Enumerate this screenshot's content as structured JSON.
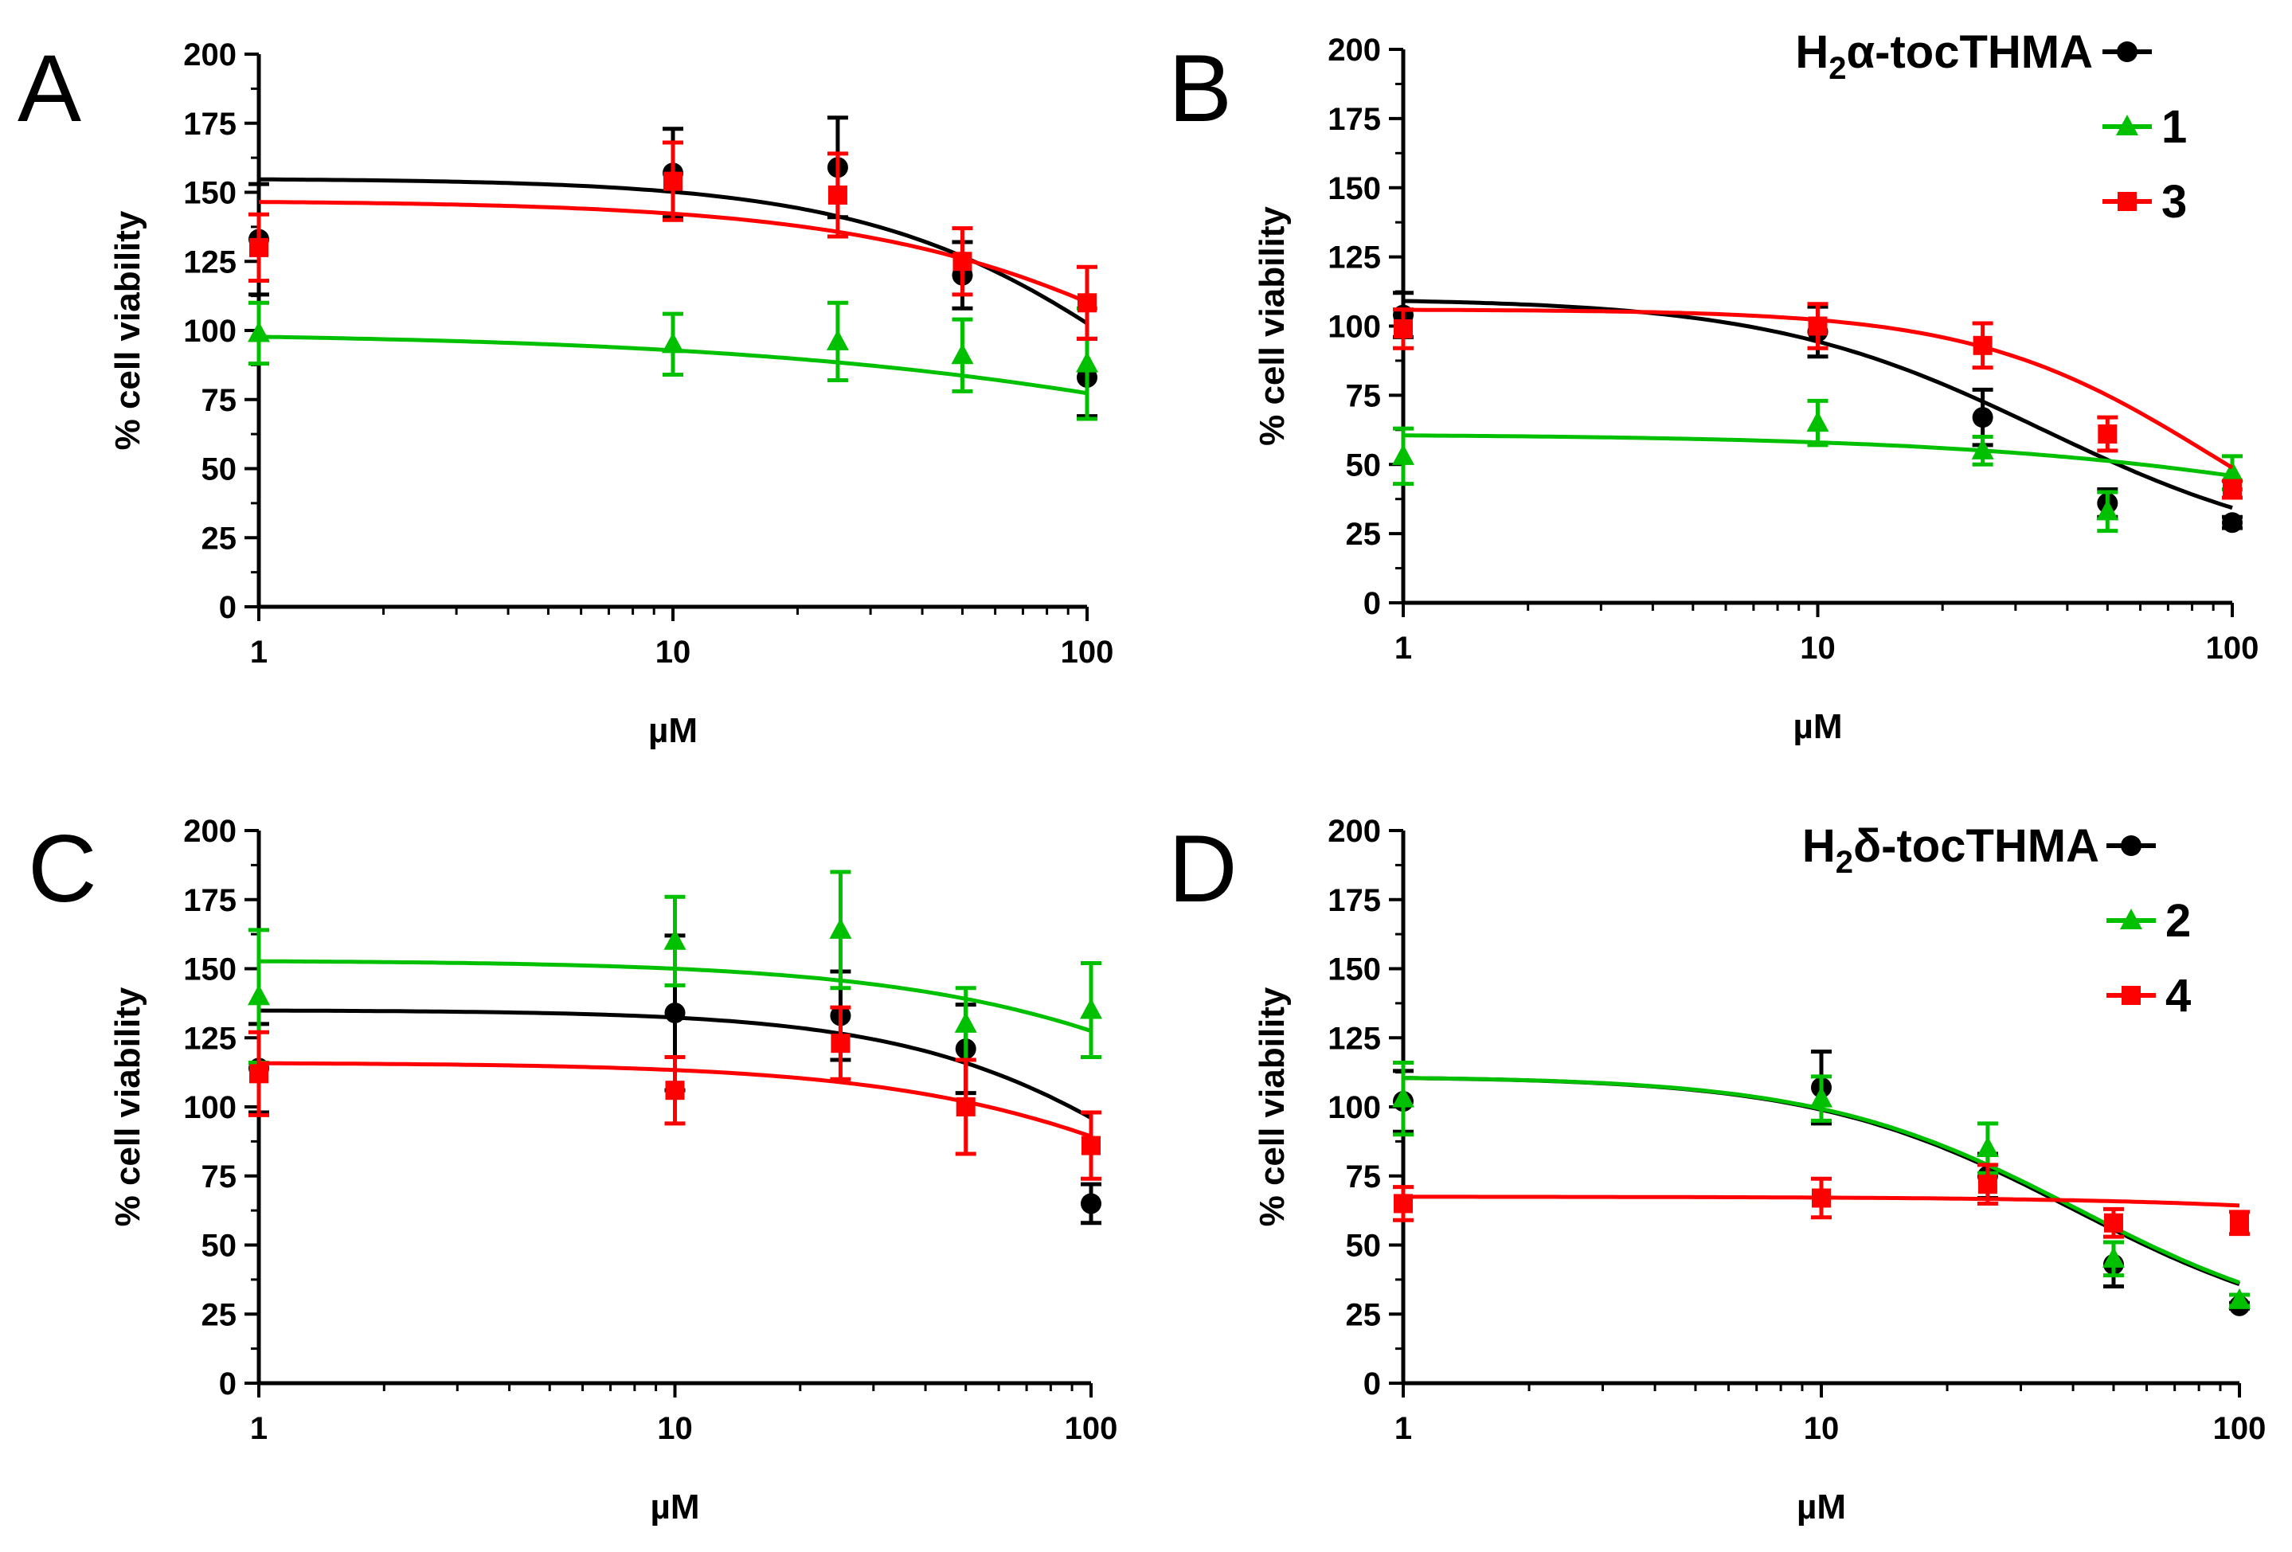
{
  "chart_data": [
    {
      "panel": "A",
      "type": "scatter",
      "xlabel": "µM",
      "ylabel": "% cell viability",
      "xscale": "log",
      "xlim": [
        1,
        100
      ],
      "ylim": [
        0,
        200
      ],
      "xticks": [
        "1",
        "10",
        "100"
      ],
      "yticks": [
        "0",
        "25",
        "50",
        "75",
        "100",
        "125",
        "150",
        "175",
        "200"
      ],
      "legend": [],
      "series": [
        {
          "name": "H2α-tocTHMA",
          "color": "#000000",
          "marker": "circle",
          "x": [
            1,
            10,
            25,
            50,
            100
          ],
          "y": [
            133,
            157,
            159,
            120,
            83
          ],
          "err": [
            20,
            16,
            18,
            12,
            14
          ],
          "fit": {
            "top": 155,
            "bottom": 0,
            "ec50": 175,
            "hill": 1.2
          }
        },
        {
          "name": "1",
          "color": "#00c000",
          "marker": "triangle",
          "x": [
            1,
            10,
            25,
            50,
            100
          ],
          "y": [
            99,
            95,
            96,
            91,
            88
          ],
          "err": [
            11,
            11,
            14,
            13,
            20
          ],
          "fit": {
            "top": 99.5,
            "bottom": 0,
            "ec50": 800,
            "hill": 0.6
          }
        },
        {
          "name": "3",
          "color": "#ff0000",
          "marker": "square",
          "x": [
            1,
            10,
            25,
            50,
            100
          ],
          "y": [
            130,
            154,
            149,
            125,
            110
          ],
          "err": [
            12,
            14,
            15,
            12,
            13
          ],
          "fit": {
            "top": 147,
            "bottom": 0,
            "ec50": 300,
            "hill": 1.0
          }
        }
      ]
    },
    {
      "panel": "B",
      "type": "scatter",
      "xlabel": "µM",
      "ylabel": "% cell viability",
      "xscale": "log",
      "xlim": [
        1,
        100
      ],
      "ylim": [
        0,
        200
      ],
      "xticks": [
        "1",
        "10",
        "100"
      ],
      "yticks": [
        "0",
        "25",
        "50",
        "75",
        "100",
        "125",
        "150",
        "175",
        "200"
      ],
      "legend": [
        {
          "label": "H",
          "sub": "2",
          "rest": "α-tocTHMA",
          "series": 0
        },
        {
          "label": "1",
          "sub": "",
          "rest": "",
          "series": 1
        },
        {
          "label": "3",
          "sub": "",
          "rest": "",
          "series": 2
        }
      ],
      "series": [
        {
          "name": "H2α-tocTHMA",
          "color": "#000000",
          "marker": "circle",
          "x": [
            1,
            10,
            25,
            50,
            100
          ],
          "y": [
            104,
            98,
            67,
            36,
            29
          ],
          "err": [
            8,
            9,
            10,
            5,
            2
          ],
          "fit": {
            "top": 110,
            "bottom": 15,
            "ec50": 35,
            "hill": 1.3
          }
        },
        {
          "name": "1",
          "color": "#00c000",
          "marker": "triangle",
          "x": [
            1,
            10,
            25,
            50,
            100
          ],
          "y": [
            53,
            65,
            55,
            33,
            47
          ],
          "err": [
            10,
            8,
            5,
            7,
            6
          ],
          "fit": {
            "top": 61,
            "bottom": 0,
            "ec50": 400,
            "hill": 0.8
          }
        },
        {
          "name": "3",
          "color": "#ff0000",
          "marker": "square",
          "x": [
            1,
            10,
            25,
            50,
            100
          ],
          "y": [
            99,
            100,
            93,
            61,
            41
          ],
          "err": [
            7,
            8,
            8,
            6,
            3
          ],
          "fit": {
            "top": 106,
            "bottom": 0,
            "ec50": 90,
            "hill": 1.5
          }
        }
      ]
    },
    {
      "panel": "C",
      "type": "scatter",
      "xlabel": "µM",
      "ylabel": "% cell viability",
      "xscale": "log",
      "xlim": [
        1,
        100
      ],
      "ylim": [
        0,
        200
      ],
      "xticks": [
        "1",
        "10",
        "100"
      ],
      "yticks": [
        "0",
        "25",
        "50",
        "75",
        "100",
        "125",
        "150",
        "175",
        "200"
      ],
      "legend": [],
      "series": [
        {
          "name": "H2δ-tocTHMA",
          "color": "#000000",
          "marker": "circle",
          "x": [
            1,
            10,
            25,
            50,
            100
          ],
          "y": [
            114,
            134,
            133,
            121,
            65
          ],
          "err": [
            16,
            28,
            16,
            16,
            7
          ],
          "fit": {
            "top": 135,
            "bottom": 0,
            "ec50": 200,
            "hill": 1.3
          }
        },
        {
          "name": "2",
          "color": "#00c000",
          "marker": "triangle",
          "x": [
            1,
            10,
            25,
            50,
            100
          ],
          "y": [
            140,
            160,
            164,
            130,
            135
          ],
          "err": [
            24,
            16,
            21,
            13,
            17
          ],
          "fit": {
            "top": 153,
            "bottom": 0,
            "ec50": 500,
            "hill": 1.0
          }
        },
        {
          "name": "4",
          "color": "#ff0000",
          "marker": "square",
          "x": [
            1,
            10,
            25,
            50,
            100
          ],
          "y": [
            112,
            106,
            123,
            100,
            86
          ],
          "err": [
            15,
            12,
            13,
            17,
            12
          ],
          "fit": {
            "top": 116,
            "bottom": 0,
            "ec50": 300,
            "hill": 1.1
          }
        }
      ]
    },
    {
      "panel": "D",
      "type": "scatter",
      "xlabel": "µM",
      "ylabel": "% cell viability",
      "xscale": "log",
      "xlim": [
        1,
        100
      ],
      "ylim": [
        0,
        200
      ],
      "xticks": [
        "1",
        "10",
        "100"
      ],
      "yticks": [
        "0",
        "25",
        "50",
        "75",
        "100",
        "125",
        "150",
        "175",
        "200"
      ],
      "legend": [
        {
          "label": "H",
          "sub": "2",
          "rest": "δ-tocTHMA",
          "series": 0
        },
        {
          "label": "2",
          "sub": "",
          "rest": "",
          "series": 1
        },
        {
          "label": "4",
          "sub": "",
          "rest": "",
          "series": 2
        }
      ],
      "series": [
        {
          "name": "H2δ-tocTHMA",
          "color": "#000000",
          "marker": "circle",
          "x": [
            1,
            10,
            25,
            50,
            100
          ],
          "y": [
            102,
            107,
            75,
            43,
            28
          ],
          "err": [
            11,
            13,
            8,
            8,
            1
          ],
          "fit": {
            "top": 111,
            "bottom": 15,
            "ec50": 40,
            "hill": 1.4
          }
        },
        {
          "name": "2",
          "color": "#00c000",
          "marker": "triangle",
          "x": [
            1,
            10,
            25,
            50,
            100
          ],
          "y": [
            103,
            103,
            85,
            45,
            30
          ],
          "err": [
            13,
            8,
            9,
            6,
            2
          ],
          "fit": {
            "top": 111,
            "bottom": 15,
            "ec50": 41,
            "hill": 1.4
          }
        },
        {
          "name": "4",
          "color": "#ff0000",
          "marker": "square",
          "x": [
            1,
            10,
            25,
            50,
            100
          ],
          "y": [
            65,
            67,
            72,
            58,
            58
          ],
          "err": [
            6,
            7,
            7,
            5,
            4
          ],
          "fit": {
            "top": 67.5,
            "bottom": 0,
            "ec50": 2000,
            "hill": 1.0
          }
        }
      ]
    }
  ]
}
